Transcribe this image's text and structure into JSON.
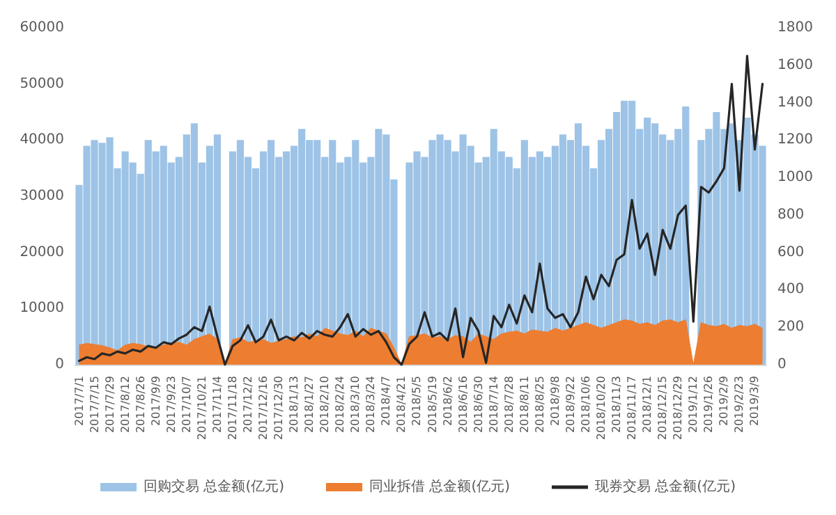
{
  "chart_data": {
    "type": "bar",
    "categories": [
      "2017/7/1",
      null,
      "2017/7/15",
      null,
      "2017/7/29",
      null,
      "2017/8/12",
      null,
      "2017/8/26",
      null,
      "2017/9/9",
      null,
      "2017/9/23",
      null,
      "2017/10/7",
      null,
      "2017/10/21",
      null,
      "2017/11/4",
      null,
      "2017/11/18",
      null,
      "2017/12/2",
      null,
      "2017/12/16",
      null,
      "2017/12/30",
      null,
      "2018/1/13",
      null,
      "2018/1/27",
      null,
      "2018/2/10",
      null,
      "2018/2/24",
      null,
      "2018/3/10",
      null,
      "2018/3/24",
      null,
      "2018/4/7",
      null,
      "2018/4/21",
      null,
      "2018/5/5",
      null,
      "2018/5/19",
      null,
      "2018/6/2",
      null,
      "2018/6/16",
      null,
      "2018/6/30",
      null,
      "2018/7/14",
      null,
      "2018/7/28",
      null,
      "2018/8/11",
      null,
      "2018/8/25",
      null,
      "2018/9/8",
      null,
      "2018/9/22",
      null,
      "2018/10/6",
      null,
      "2018/10/20",
      null,
      "2018/11/3",
      null,
      "2018/11/17",
      null,
      "2018/12/1",
      null,
      "2018/12/15",
      null,
      "2018/12/29",
      null,
      "2019/1/12",
      null,
      "2019/1/26",
      null,
      "2019/2/9",
      null,
      "2019/2/23",
      null,
      "2019/3/9",
      null
    ],
    "series": [
      {
        "name": "回购交易 总金额(亿元)",
        "color": "#9dc3e6",
        "values": [
          32000,
          39000,
          40000,
          39500,
          40500,
          35000,
          38000,
          36000,
          34000,
          40000,
          38000,
          39000,
          36000,
          37000,
          41000,
          43000,
          36000,
          39000,
          41000,
          0,
          38000,
          40000,
          37000,
          35000,
          38000,
          40000,
          37000,
          38000,
          39000,
          42000,
          40000,
          40000,
          37000,
          40000,
          36000,
          37000,
          40000,
          36000,
          37000,
          42000,
          41000,
          33000,
          0,
          36000,
          38000,
          37000,
          40000,
          41000,
          40000,
          38000,
          41000,
          39000,
          36000,
          37000,
          42000,
          38000,
          37000,
          35000,
          40000,
          37000,
          38000,
          37000,
          39000,
          41000,
          40000,
          43000,
          39000,
          35000,
          40000,
          42000,
          45000,
          47000,
          47000,
          42000,
          44000,
          43000,
          41000,
          40000,
          42000,
          46000,
          0,
          40000,
          42000,
          45000,
          42000,
          43000,
          40000,
          44000,
          41000,
          39000
        ]
      },
      {
        "name": "同业拆借 总金额(亿元)",
        "color": "#ed7d31",
        "type": "area",
        "values": [
          3500,
          3800,
          3600,
          3400,
          3000,
          2500,
          3500,
          3800,
          3600,
          3200,
          3000,
          3500,
          3800,
          4000,
          3500,
          4500,
          5000,
          5500,
          4500,
          0,
          4500,
          4800,
          4000,
          4200,
          4500,
          3800,
          4200,
          4500,
          5000,
          4800,
          5500,
          5000,
          6500,
          6000,
          5500,
          5200,
          6000,
          5000,
          6500,
          6000,
          5500,
          3000,
          0,
          5000,
          5200,
          5500,
          4800,
          5000,
          4500,
          5200,
          5000,
          4000,
          5500,
          5000,
          4500,
          5500,
          5800,
          6000,
          5500,
          6200,
          6000,
          5800,
          6500,
          6000,
          6500,
          7000,
          7500,
          7000,
          6500,
          7000,
          7500,
          8000,
          7800,
          7200,
          7500,
          7000,
          7800,
          8000,
          7500,
          8000,
          0,
          7500,
          7000,
          6800,
          7200,
          6500,
          7000,
          6800,
          7200,
          6500
        ]
      },
      {
        "name": "现券交易 总金额(亿元)",
        "color": "#262626",
        "type": "line",
        "axis": "y2",
        "values": [
          20,
          40,
          30,
          60,
          50,
          70,
          60,
          80,
          70,
          100,
          90,
          120,
          110,
          140,
          160,
          200,
          180,
          310,
          150,
          0,
          100,
          130,
          210,
          120,
          150,
          240,
          130,
          150,
          130,
          170,
          140,
          180,
          160,
          150,
          200,
          270,
          150,
          190,
          160,
          180,
          120,
          40,
          0,
          110,
          150,
          280,
          150,
          170,
          130,
          300,
          40,
          250,
          180,
          10,
          260,
          200,
          320,
          220,
          370,
          280,
          540,
          300,
          250,
          270,
          200,
          280,
          470,
          350,
          480,
          420,
          560,
          590,
          880,
          620,
          700,
          480,
          720,
          620,
          800,
          850,
          230,
          950,
          920,
          980,
          1050,
          1500,
          930,
          1650,
          1150,
          1500
        ]
      }
    ],
    "ylim": [
      0,
      60000
    ],
    "yticks": [
      0,
      10000,
      20000,
      30000,
      40000,
      50000,
      60000
    ],
    "y2lim": [
      0,
      1800
    ],
    "y2ticks": [
      0,
      200,
      400,
      600,
      800,
      1000,
      1200,
      1400,
      1600,
      1800
    ],
    "legend": "bottom",
    "grid": false,
    "marker": "none",
    "line_style": "solid"
  }
}
